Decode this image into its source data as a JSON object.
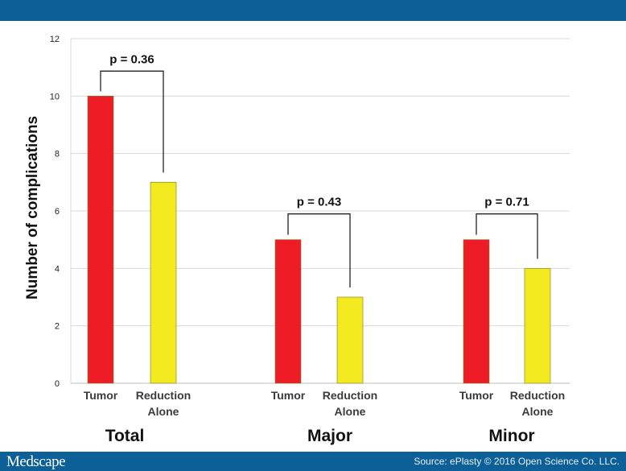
{
  "brand": {
    "name": "Medscape"
  },
  "footer": {
    "source": "Source: ePlasty © 2016 Open Science Co. LLC."
  },
  "chart_data": {
    "type": "bar",
    "ylabel": "Number of complications",
    "xlabel": "",
    "ylim": [
      0,
      12
    ],
    "yticks": [
      "0",
      "2",
      "4",
      "6",
      "8",
      "10",
      "12"
    ],
    "grid": true,
    "groups": [
      {
        "name": "Total",
        "p_value": "p = 0.36",
        "bars": [
          {
            "label": [
              "Tumor"
            ],
            "value": 10,
            "color": "#ee1c25"
          },
          {
            "label": [
              "Reduction",
              "Alone"
            ],
            "value": 7,
            "color": "#f2ea1f"
          }
        ]
      },
      {
        "name": "Major",
        "p_value": "p = 0.43",
        "bars": [
          {
            "label": [
              "Tumor"
            ],
            "value": 5,
            "color": "#ee1c25"
          },
          {
            "label": [
              "Reduction",
              "Alone"
            ],
            "value": 3,
            "color": "#f2ea1f"
          }
        ]
      },
      {
        "name": "Minor",
        "p_value": "p = 0.71",
        "bars": [
          {
            "label": [
              "Tumor"
            ],
            "value": 5,
            "color": "#ee1c25"
          },
          {
            "label": [
              "Reduction",
              "Alone"
            ],
            "value": 4,
            "color": "#f2ea1f"
          }
        ]
      }
    ]
  }
}
